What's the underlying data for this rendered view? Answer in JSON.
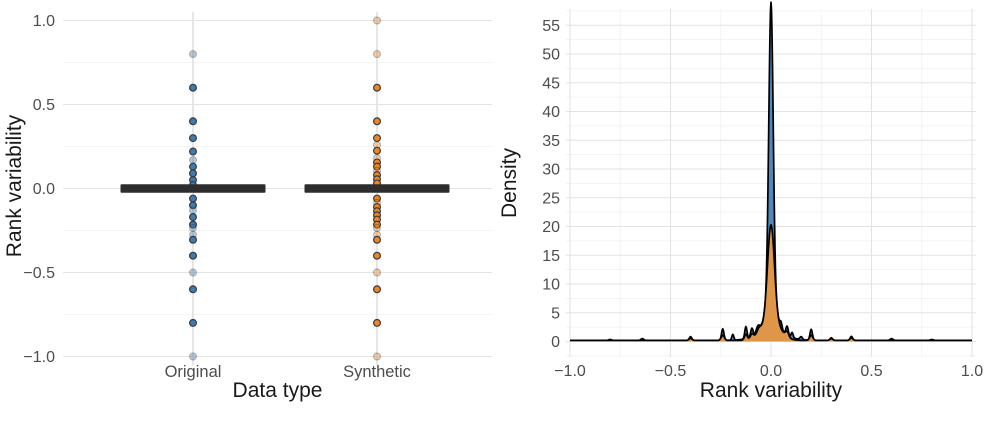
{
  "figure": {
    "background": "#ffffff"
  },
  "panels": {
    "left": {
      "x_title": "Data type",
      "y_title": "Rank variability"
    },
    "right": {
      "x_title": "Rank variability",
      "y_title": "Density"
    }
  },
  "colors": {
    "original_point": "#3c7bb1",
    "synthetic_point": "#ee8522",
    "point_stroke": "#3b3b3b",
    "median_bar": "#2d2d2d",
    "density_original_fill": "#4e88bc",
    "density_synthetic_fill": "#f0983b",
    "density_stroke": "#000000",
    "grid_major": "#e3e3e3",
    "grid_minor": "#f0f0f0",
    "tick_text": "#4d4d4d",
    "title_text": "#191919"
  },
  "chart_data": [
    {
      "type": "strip-box",
      "panel": "left",
      "xlabel": "Data type",
      "ylabel": "Rank variability",
      "categories": [
        "Original",
        "Synthetic"
      ],
      "y_ticks": [
        1.0,
        0.5,
        0.0,
        -0.5,
        -1.0
      ],
      "y_tick_labels": [
        "1.0",
        "0.5",
        "0.0",
        "−0.5",
        "−1.0"
      ],
      "y_minor_ticks": [
        0.75,
        0.25,
        -0.25,
        -0.75
      ],
      "ylim": [
        -1.05,
        1.05
      ],
      "grid": true,
      "median_bar": {
        "value": 0.0,
        "applies_to": "both categories"
      },
      "series": [
        {
          "name": "Original",
          "color": "#3c7bb1",
          "points": [
            {
              "y": 0.8,
              "faded": true
            },
            {
              "y": 0.6
            },
            {
              "y": 0.4
            },
            {
              "y": 0.3
            },
            {
              "y": 0.22
            },
            {
              "y": 0.17,
              "faded": true
            },
            {
              "y": 0.13
            },
            {
              "y": 0.09
            },
            {
              "y": 0.05
            },
            {
              "y": 0.02
            },
            {
              "y": -0.06
            },
            {
              "y": -0.1
            },
            {
              "y": -0.13,
              "faded": true
            },
            {
              "y": -0.17
            },
            {
              "y": -0.215
            },
            {
              "y": -0.235,
              "faded": true
            },
            {
              "y": -0.275,
              "faded": true
            },
            {
              "y": -0.305
            },
            {
              "y": -0.4
            },
            {
              "y": -0.5,
              "faded": true
            },
            {
              "y": -0.6
            },
            {
              "y": -0.8
            },
            {
              "y": -1.0,
              "faded": true
            }
          ]
        },
        {
          "name": "Synthetic",
          "color": "#ee8522",
          "points": [
            {
              "y": 1.0,
              "faded": true
            },
            {
              "y": 0.8,
              "faded": true
            },
            {
              "y": 0.6
            },
            {
              "y": 0.4
            },
            {
              "y": 0.3
            },
            {
              "y": 0.26,
              "faded": true
            },
            {
              "y": 0.225
            },
            {
              "y": 0.18,
              "faded": true
            },
            {
              "y": 0.155
            },
            {
              "y": 0.13
            },
            {
              "y": 0.105,
              "faded": true
            },
            {
              "y": 0.08
            },
            {
              "y": 0.055
            },
            {
              "y": 0.03
            },
            {
              "y": -0.06
            },
            {
              "y": -0.085,
              "faded": true
            },
            {
              "y": -0.11
            },
            {
              "y": -0.135
            },
            {
              "y": -0.16
            },
            {
              "y": -0.185
            },
            {
              "y": -0.215
            },
            {
              "y": -0.235,
              "faded": true
            },
            {
              "y": -0.275,
              "faded": true
            },
            {
              "y": -0.305
            },
            {
              "y": -0.4
            },
            {
              "y": -0.5,
              "faded": true
            },
            {
              "y": -0.6
            },
            {
              "y": -0.8
            },
            {
              "y": -1.0,
              "faded": true
            }
          ]
        }
      ]
    },
    {
      "type": "density",
      "panel": "right",
      "xlabel": "Rank variability",
      "ylabel": "Density",
      "x_ticks": [
        -1.0,
        -0.5,
        0.0,
        0.5,
        1.0
      ],
      "x_tick_labels": [
        "−1.0",
        "−0.5",
        "0.0",
        "0.5",
        "1.0"
      ],
      "x_minor_ticks": [
        -0.75,
        -0.25,
        0.25,
        0.75
      ],
      "y_ticks": [
        0,
        5,
        10,
        15,
        20,
        25,
        30,
        35,
        40,
        45,
        50,
        55
      ],
      "y_tick_labels": [
        "0",
        "5",
        "10",
        "15",
        "20",
        "25",
        "30",
        "35",
        "40",
        "45",
        "50",
        "55"
      ],
      "y_minor_step": 2.5,
      "xlim": [
        -1.0,
        1.0
      ],
      "ylim": [
        0,
        55
      ],
      "grid": true,
      "curves": [
        {
          "name": "Original",
          "fill": "#4e88bc",
          "stroke": "#000000",
          "fill_opacity": 1.0,
          "baseline": 0.2,
          "peak_density": 51.5,
          "peak_x": 0.0,
          "bumps": [
            [
              0,
              51.3,
              0.011
            ],
            [
              0,
              6,
              0.028
            ],
            [
              0,
              1.5,
              0.07
            ],
            [
              -0.24,
              2.0,
              0.006
            ],
            [
              -0.19,
              1.0,
              0.005
            ],
            [
              -0.125,
              2.1,
              0.0055
            ],
            [
              -0.095,
              1.5,
              0.006
            ],
            [
              -0.065,
              1.2,
              0.009
            ],
            [
              0.05,
              0.9,
              0.005
            ],
            [
              0.08,
              1.6,
              0.006
            ],
            [
              0.105,
              0.9,
              0.005
            ],
            [
              0.15,
              0.5,
              0.006
            ],
            [
              0.2,
              1.9,
              0.006
            ],
            [
              0.3,
              0.45,
              0.006
            ],
            [
              0.4,
              0.7,
              0.006
            ],
            [
              0.6,
              0.3,
              0.007
            ],
            [
              0.8,
              0.15,
              0.007
            ],
            [
              -0.4,
              0.65,
              0.006
            ],
            [
              -0.64,
              0.3,
              0.007
            ],
            [
              -0.8,
              0.15,
              0.007
            ]
          ]
        },
        {
          "name": "Synthetic",
          "fill": "#f0983b",
          "stroke": "#000000",
          "fill_opacity": 0.9,
          "baseline": 0.18,
          "peak_density": 16.8,
          "peak_x": 0.0,
          "bumps": [
            [
              0,
              16.6,
              0.017
            ],
            [
              0,
              3.5,
              0.045
            ],
            [
              -0.24,
              0.9,
              0.008
            ],
            [
              -0.125,
              1.0,
              0.007
            ],
            [
              -0.095,
              0.8,
              0.008
            ],
            [
              -0.06,
              0.8,
              0.01
            ],
            [
              0.08,
              0.9,
              0.008
            ],
            [
              0.2,
              0.9,
              0.008
            ],
            [
              0.3,
              0.3,
              0.008
            ],
            [
              0.4,
              0.4,
              0.008
            ],
            [
              -0.4,
              0.35,
              0.008
            ]
          ]
        }
      ]
    }
  ]
}
